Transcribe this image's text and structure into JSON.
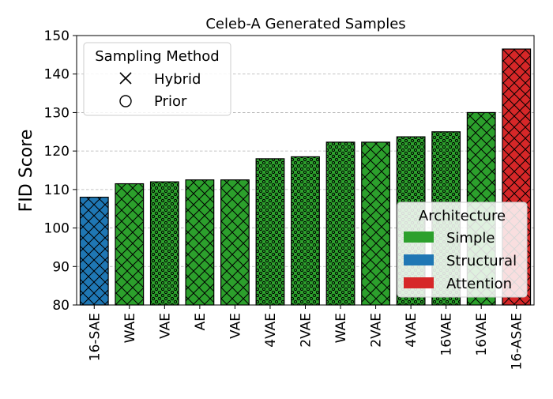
{
  "chart_data": {
    "type": "bar",
    "title": "Celeb-A Generated Samples",
    "xlabel": "",
    "ylabel": "FID Score",
    "ylim": [
      80,
      150
    ],
    "yticks": [
      80,
      90,
      100,
      110,
      120,
      130,
      140,
      150
    ],
    "grid": true,
    "categories": [
      "16-SAE",
      "WAE",
      "VAE",
      "AE",
      "VAE",
      "4VAE",
      "2VAE",
      "WAE",
      "2VAE",
      "4VAE",
      "16VAE",
      "16VAE",
      "16-ASAE"
    ],
    "values": [
      108.0,
      111.5,
      112.0,
      112.5,
      112.5,
      118.0,
      118.5,
      122.3,
      122.3,
      123.7,
      125.0,
      130.0,
      146.5
    ],
    "sampling": [
      "Hybrid",
      "Hybrid",
      "Prior",
      "Hybrid",
      "Hybrid",
      "Prior",
      "Prior",
      "Prior",
      "Hybrid",
      "Prior",
      "Prior",
      "Hybrid",
      "Hybrid"
    ],
    "architecture": [
      "Structural",
      "Simple",
      "Simple",
      "Simple",
      "Simple",
      "Simple",
      "Simple",
      "Simple",
      "Simple",
      "Simple",
      "Simple",
      "Simple",
      "Attention"
    ],
    "architecture_colors": {
      "Simple": "#2ca02c",
      "Structural": "#1f77b4",
      "Attention": "#d62728"
    },
    "legends": [
      {
        "title": "Sampling Method",
        "placement": "top-left",
        "entries": [
          {
            "label": "Hybrid",
            "marker": "x-icon"
          },
          {
            "label": "Prior",
            "marker": "circle-icon"
          }
        ]
      },
      {
        "title": "Architecture",
        "placement": "bottom-right",
        "entries": [
          {
            "label": "Simple",
            "color": "#2ca02c"
          },
          {
            "label": "Structural",
            "color": "#1f77b4"
          },
          {
            "label": "Attention",
            "color": "#d62728"
          }
        ]
      }
    ]
  }
}
